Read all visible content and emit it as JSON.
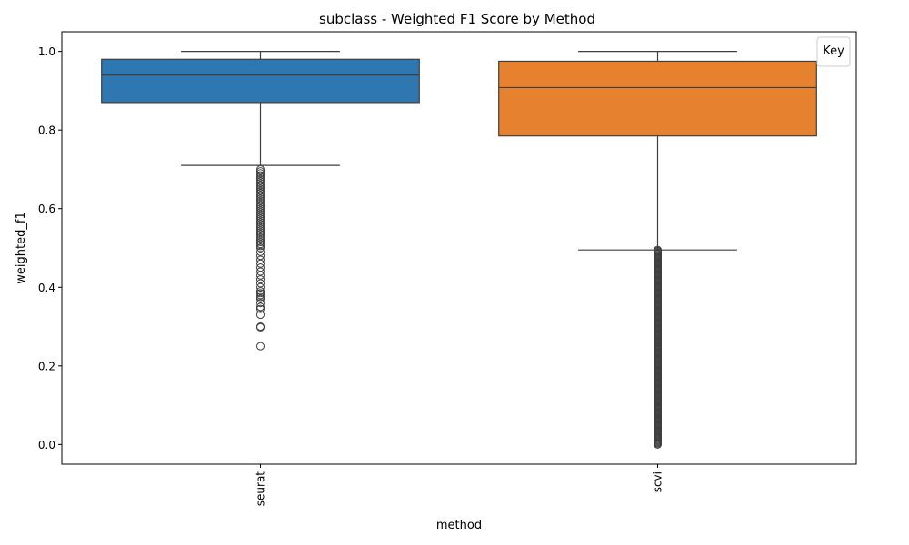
{
  "chart_data": {
    "type": "box",
    "title": "subclass - Weighted F1 Score by Method",
    "xlabel": "method",
    "ylabel": "weighted_f1",
    "ylim": [
      -0.05,
      1.05
    ],
    "yticks": [
      0.0,
      0.2,
      0.4,
      0.6,
      0.8,
      1.0
    ],
    "ytick_labels": [
      "0.0",
      "0.2",
      "0.4",
      "0.6",
      "0.8",
      "1.0"
    ],
    "categories": [
      "seurat",
      "scvi"
    ],
    "legend": {
      "title": "Key",
      "placement": "top-right"
    },
    "grid": false,
    "boxes": [
      {
        "label": "seurat",
        "color": "#2f77b0",
        "whisker_low": 0.71,
        "q1": 0.87,
        "median": 0.94,
        "q3": 0.98,
        "whisker_high": 1.0,
        "outliers": [
          0.7,
          0.695,
          0.69,
          0.685,
          0.68,
          0.675,
          0.67,
          0.665,
          0.66,
          0.655,
          0.65,
          0.645,
          0.64,
          0.635,
          0.63,
          0.625,
          0.62,
          0.615,
          0.61,
          0.605,
          0.6,
          0.595,
          0.59,
          0.585,
          0.58,
          0.575,
          0.57,
          0.565,
          0.56,
          0.555,
          0.55,
          0.545,
          0.54,
          0.535,
          0.53,
          0.525,
          0.52,
          0.515,
          0.51,
          0.505,
          0.5,
          0.49,
          0.48,
          0.47,
          0.46,
          0.45,
          0.44,
          0.43,
          0.42,
          0.41,
          0.4,
          0.39,
          0.385,
          0.38,
          0.375,
          0.37,
          0.36,
          0.35,
          0.345,
          0.33,
          0.3,
          0.298,
          0.25
        ]
      },
      {
        "label": "scvi",
        "color": "#e6822f",
        "whisker_low": 0.495,
        "q1": 0.785,
        "median": 0.908,
        "q3": 0.975,
        "whisker_high": 1.0,
        "outlier_range": [
          0.0,
          0.495
        ]
      }
    ]
  }
}
